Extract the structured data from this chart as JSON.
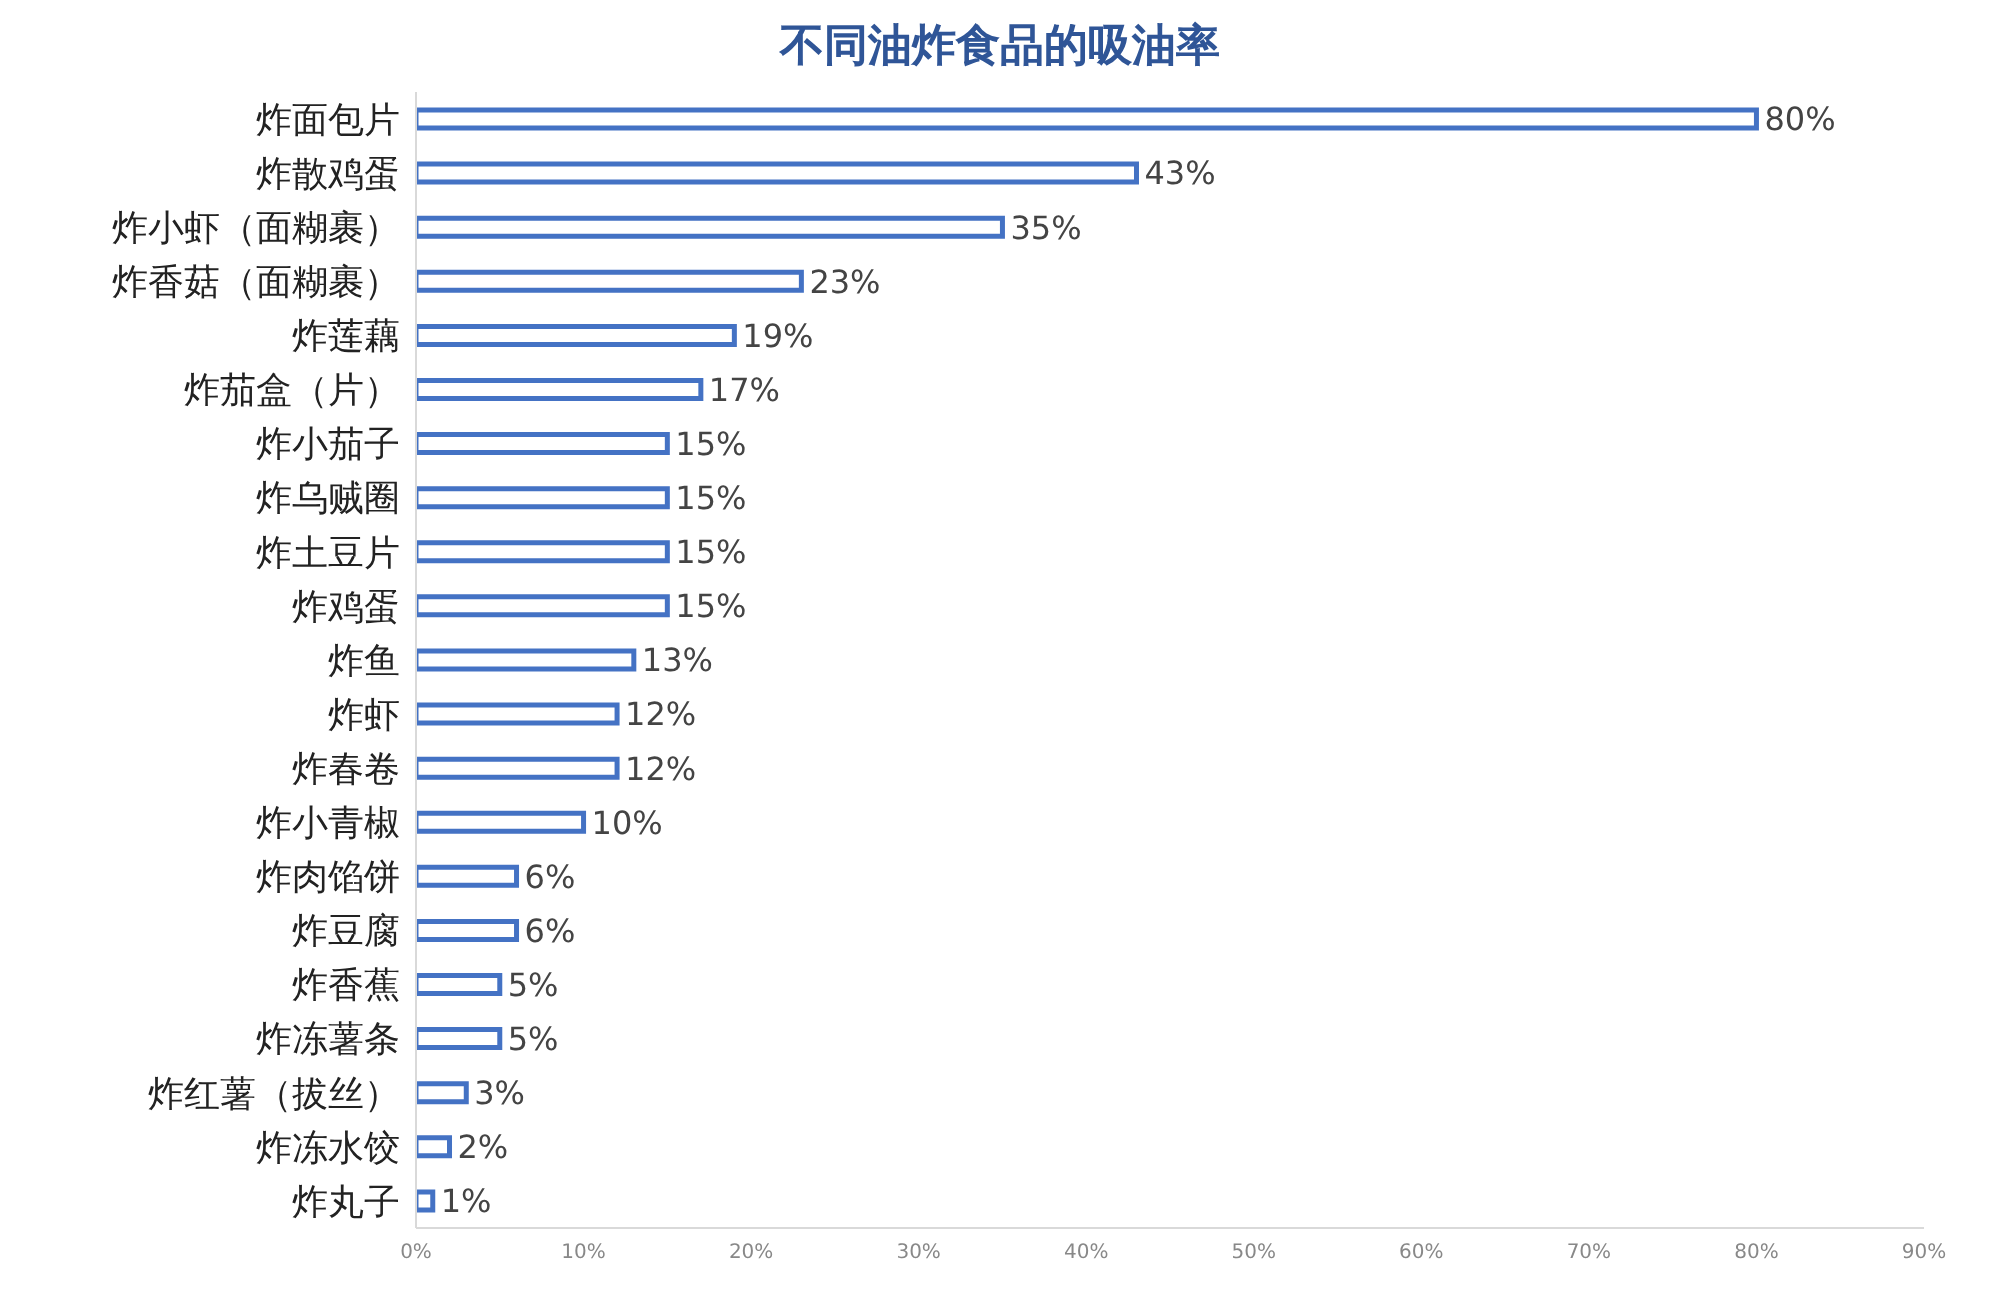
{
  "chart_data": {
    "type": "bar",
    "orientation": "horizontal",
    "title": "不同油炸食品的吸油率",
    "categories": [
      "炸面包片",
      "炸散鸡蛋",
      "炸小虾（面糊裹）",
      "炸香菇（面糊裹）",
      "炸莲藕",
      "炸茄盒（片）",
      "炸小茄子",
      "炸乌贼圈",
      "炸土豆片",
      "炸鸡蛋",
      "炸鱼",
      "炸虾",
      "炸春卷",
      "炸小青椒",
      "炸肉馅饼",
      "炸豆腐",
      "炸香蕉",
      "炸冻薯条",
      "炸红薯（拔丝）",
      "炸冻水饺",
      "炸丸子"
    ],
    "values": [
      80,
      43,
      35,
      23,
      19,
      17,
      15,
      15,
      15,
      15,
      13,
      12,
      12,
      10,
      6,
      6,
      5,
      5,
      3,
      2,
      1
    ],
    "value_labels": [
      "80%",
      "43%",
      "35%",
      "23%",
      "19%",
      "17%",
      "15%",
      "15%",
      "15%",
      "15%",
      "13%",
      "12%",
      "12%",
      "10%",
      "6%",
      "6%",
      "5%",
      "5%",
      "3%",
      "2%",
      "1%"
    ],
    "color": "#4472c4",
    "xlim": [
      0,
      90
    ],
    "xticks": [
      {
        "value": 0,
        "label": "0%"
      },
      {
        "value": 10,
        "label": "10%"
      },
      {
        "value": 20,
        "label": "20%"
      },
      {
        "value": 30,
        "label": "30%"
      },
      {
        "value": 40,
        "label": "40%"
      },
      {
        "value": 50,
        "label": "50%"
      },
      {
        "value": 60,
        "label": "60%"
      },
      {
        "value": 70,
        "label": "70%"
      },
      {
        "value": 80,
        "label": "80%"
      },
      {
        "value": 90,
        "label": "90%"
      }
    ],
    "grid": false
  }
}
